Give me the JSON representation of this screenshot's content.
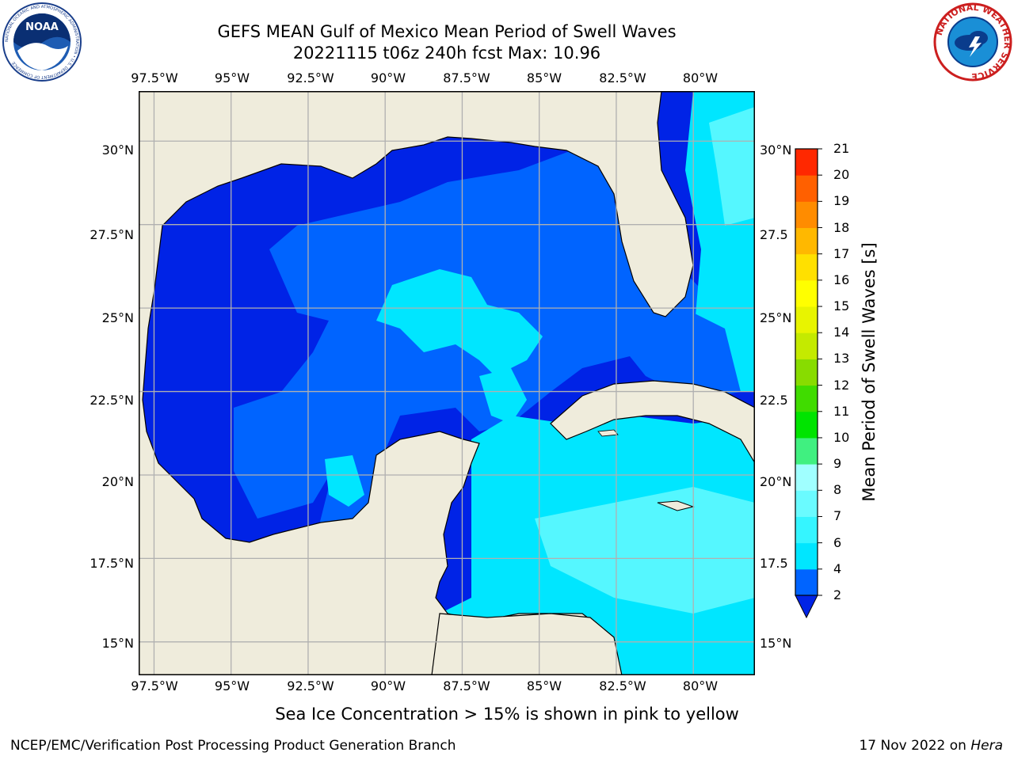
{
  "title_line1": "GEFS MEAN Gulf of Mexico Mean Period of Swell Waves",
  "title_line2": "20221115 t06z 240h fcst   Max: 10.96",
  "logos": {
    "left": {
      "name": "NOAA",
      "ring_text": "NATIONAL OCEANIC AND ATMOSPHERIC ADMINISTRATION • U.S. DEPARTMENT OF COMMERCE"
    },
    "right": {
      "name": "NATIONAL WEATHER SERVICE"
    }
  },
  "map": {
    "lon_range": [
      -98.0,
      -78.0
    ],
    "lat_range": [
      14.0,
      31.5
    ],
    "lon_ticks": [
      "97.5°W",
      "95°W",
      "92.5°W",
      "90°W",
      "87.5°W",
      "85°W",
      "82.5°W",
      "80°W"
    ],
    "lat_ticks": [
      "30°N",
      "27.5°N",
      "25°N",
      "22.5°N",
      "20°N",
      "17.5°N",
      "15°N"
    ],
    "right_lat_ticks": [
      "30°N",
      "27.5",
      "25°N",
      "22.5",
      "20°N",
      "17.5",
      "15°N"
    ],
    "land_color": "#efecdc",
    "grid_color": "#b0b0b0",
    "grid": true
  },
  "colorbar": {
    "label": "Mean Period of Swell Waves [s]",
    "levels": [
      2,
      4,
      6,
      7,
      8,
      9,
      10,
      11,
      12,
      13,
      14,
      15,
      16,
      17,
      18,
      19,
      20,
      21
    ],
    "tick_labels": [
      "2",
      "4",
      "6",
      "7",
      "8",
      "9",
      "10",
      "11",
      "12",
      "13",
      "14",
      "15",
      "16",
      "17",
      "18",
      "19",
      "20",
      "21"
    ],
    "colors": [
      "#0064ff",
      "#00e6ff",
      "#35f5ff",
      "#6afbff",
      "#a0ffff",
      "#40f080",
      "#00e400",
      "#40dc00",
      "#88dc00",
      "#c4ea00",
      "#e8f400",
      "#ffff00",
      "#ffe000",
      "#ffb800",
      "#ff8c00",
      "#ff6000",
      "#ff2800"
    ],
    "extend_min_color": "#0023e6"
  },
  "palette": {
    "deep_blue": "#0023e6",
    "blue": "#0064ff",
    "cyan": "#00e6ff",
    "light_cyan": "#55f7ff",
    "pale_cyan": "#a0ffff",
    "green": "#40f080"
  },
  "note": "Sea Ice Concentration > 15% is shown in pink to yellow",
  "footer_left": "NCEP/EMC/Verification Post Processing Product Generation Branch",
  "footer_right_date": "17 Nov 2022 on ",
  "footer_right_machine": "Hera"
}
